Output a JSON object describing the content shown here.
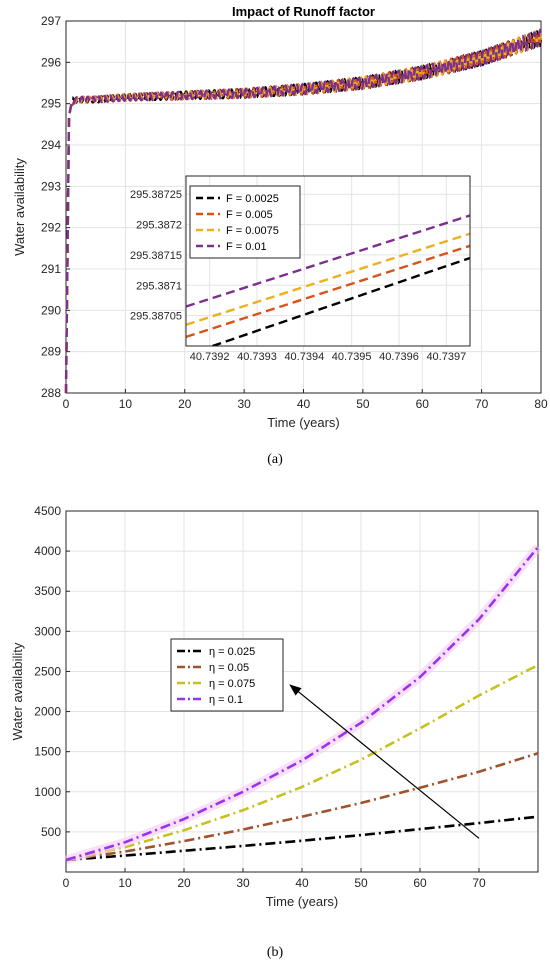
{
  "chart_data": [
    {
      "id": "a",
      "type": "line",
      "title": "Impact of Runoff factor",
      "xlabel": "Time (years)",
      "ylabel": "Water availability",
      "xlim": [
        0,
        80
      ],
      "ylim": [
        288,
        297
      ],
      "xticks": [
        "0",
        "10",
        "20",
        "30",
        "40",
        "50",
        "60",
        "70",
        "80"
      ],
      "yticks": [
        "288",
        "289",
        "290",
        "291",
        "292",
        "293",
        "294",
        "295",
        "296",
        "297"
      ],
      "grid": true,
      "legend_placement": "inset",
      "series": [
        {
          "name": "F = 0.0025",
          "color": "#000000",
          "style": "dashed",
          "x": [
            0,
            0.5,
            1,
            2,
            5,
            10,
            20,
            30,
            40,
            50,
            60,
            70,
            80
          ],
          "y": [
            288,
            294.7,
            295.05,
            295.1,
            295.1,
            295.15,
            295.2,
            295.25,
            295.35,
            295.5,
            295.75,
            296.1,
            296.6
          ]
        },
        {
          "name": "F = 0.005",
          "color": "#d95319",
          "style": "dashed",
          "x": [
            0,
            0.5,
            1,
            2,
            5,
            10,
            20,
            30,
            40,
            50,
            60,
            70,
            80
          ],
          "y": [
            288,
            294.7,
            295.05,
            295.1,
            295.1,
            295.15,
            295.2,
            295.25,
            295.35,
            295.5,
            295.75,
            296.1,
            296.6
          ]
        },
        {
          "name": "F = 0.0075",
          "color": "#edb120",
          "style": "dashed",
          "x": [
            0,
            0.5,
            1,
            2,
            5,
            10,
            20,
            30,
            40,
            50,
            60,
            70,
            80
          ],
          "y": [
            288,
            294.7,
            295.05,
            295.1,
            295.1,
            295.15,
            295.2,
            295.25,
            295.35,
            295.5,
            295.75,
            296.1,
            296.6
          ]
        },
        {
          "name": "F = 0.01",
          "color": "#7e2f8e",
          "style": "dashed",
          "x": [
            0,
            0.5,
            1,
            2,
            5,
            10,
            20,
            30,
            40,
            50,
            60,
            70,
            80
          ],
          "y": [
            288,
            294.7,
            295.05,
            295.1,
            295.1,
            295.15,
            295.2,
            295.25,
            295.35,
            295.5,
            295.75,
            296.1,
            296.6
          ]
        }
      ],
      "oscillation_amplitude": 0.12,
      "inset": {
        "xlim": [
          40.73915,
          40.73975
        ],
        "ylim": [
          295.387,
          295.38728
        ],
        "xticks": [
          "40.7392",
          "40.7393",
          "40.7394",
          "40.7395",
          "40.7396",
          "40.7397"
        ],
        "yticks": [
          "295.38705",
          "295.3871",
          "295.38715",
          "295.3872",
          "295.38725"
        ],
        "series": [
          {
            "name": "F = 0.0025",
            "x": [
              40.73915,
              40.73975
            ],
            "y": [
              295.386985,
              295.387145
            ]
          },
          {
            "name": "F = 0.005",
            "x": [
              40.73915,
              40.73975
            ],
            "y": [
              295.387015,
              295.387165
            ]
          },
          {
            "name": "F = 0.0075",
            "x": [
              40.73915,
              40.73975
            ],
            "y": [
              295.387035,
              295.387185
            ]
          },
          {
            "name": "F = 0.01",
            "x": [
              40.73915,
              40.73975
            ],
            "y": [
              295.387065,
              295.387215
            ]
          }
        ]
      }
    },
    {
      "id": "b",
      "type": "line",
      "title": "",
      "xlabel": "Time (years)",
      "ylabel": "Water availability",
      "xlim": [
        0,
        80
      ],
      "ylim": [
        0,
        4500
      ],
      "xticks": [
        "0",
        "10",
        "20",
        "30",
        "40",
        "50",
        "60",
        "70"
      ],
      "yticks": [
        "500",
        "1000",
        "1500",
        "2000",
        "2500",
        "3000",
        "3500",
        "4000",
        "4500"
      ],
      "grid": true,
      "legend_placement": "center-left",
      "series": [
        {
          "name": "η = 0.025",
          "color": "#000000",
          "style": "dashdot",
          "x": [
            0,
            10,
            20,
            30,
            40,
            50,
            60,
            70,
            80
          ],
          "y": [
            150,
            205,
            265,
            325,
            390,
            460,
            535,
            610,
            690
          ]
        },
        {
          "name": "η = 0.05",
          "color": "#a0522d",
          "style": "dashdot",
          "x": [
            0,
            10,
            20,
            30,
            40,
            50,
            60,
            70,
            80
          ],
          "y": [
            150,
            255,
            385,
            530,
            690,
            860,
            1050,
            1250,
            1480
          ]
        },
        {
          "name": "η = 0.075",
          "color": "#c8c020",
          "style": "dashdot",
          "x": [
            0,
            10,
            20,
            30,
            40,
            50,
            60,
            70,
            80
          ],
          "y": [
            150,
            310,
            520,
            770,
            1060,
            1400,
            1790,
            2200,
            2580
          ]
        },
        {
          "name": "η = 0.1",
          "color": "#9933ee",
          "style": "dashdot",
          "x": [
            0,
            10,
            20,
            30,
            40,
            50,
            60,
            70,
            80
          ],
          "y": [
            150,
            370,
            660,
            1000,
            1390,
            1860,
            2430,
            3150,
            4050
          ]
        }
      ],
      "annotation": {
        "type": "arrow",
        "from": [
          70,
          420
        ],
        "to": [
          38,
          2330
        ]
      }
    }
  ],
  "captions": [
    "(a)",
    "(b)"
  ]
}
